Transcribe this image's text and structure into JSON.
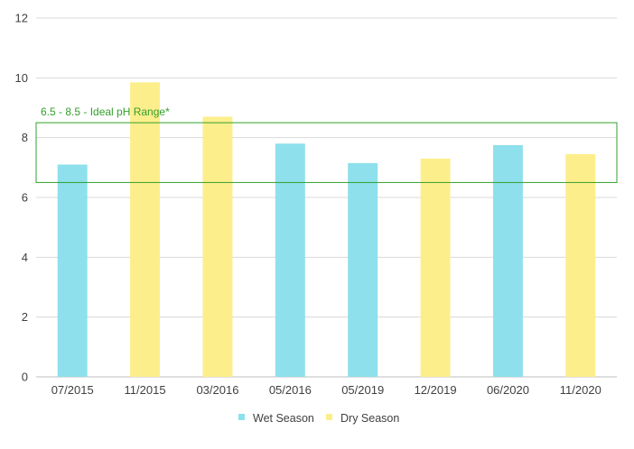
{
  "chart_data": {
    "type": "bar",
    "categories": [
      "07/2015",
      "11/2015",
      "03/2016",
      "05/2016",
      "05/2019",
      "12/2019",
      "06/2020",
      "11/2020"
    ],
    "values": [
      7.1,
      9.85,
      8.7,
      7.8,
      7.15,
      7.3,
      7.75,
      7.45
    ],
    "season": [
      "Wet Season",
      "Dry Season",
      "Dry Season",
      "Wet Season",
      "Wet Season",
      "Dry Season",
      "Wet Season",
      "Dry Season"
    ],
    "series": [
      {
        "name": "Wet Season",
        "color": "#8ee0ec"
      },
      {
        "name": "Dry Season",
        "color": "#fdee8c"
      }
    ],
    "title": "",
    "xlabel": "",
    "ylabel": "",
    "ylim": [
      0,
      12
    ],
    "yticks": [
      "0",
      "2",
      "4",
      "6",
      "8",
      "10",
      "12"
    ],
    "grid": true,
    "legend_position": "bottom",
    "annotation": {
      "label": "6.5 - 8.5 - Ideal pH Range*",
      "range": [
        6.5,
        8.5
      ],
      "color": "#33a02c"
    }
  }
}
